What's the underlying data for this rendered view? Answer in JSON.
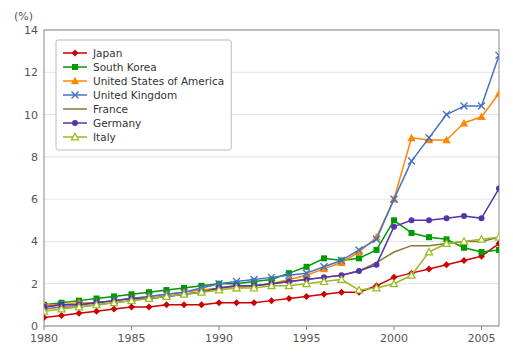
{
  "chart_data": {
    "type": "line",
    "y_label": "(%)",
    "x": [
      1980,
      1981,
      1982,
      1983,
      1984,
      1985,
      1986,
      1987,
      1988,
      1989,
      1990,
      1991,
      1992,
      1993,
      1994,
      1995,
      1996,
      1997,
      1998,
      1999,
      2000,
      2001,
      2002,
      2003,
      2004,
      2005,
      2006
    ],
    "xlim": [
      1980,
      2006
    ],
    "xticks": [
      1980,
      1985,
      1990,
      1995,
      2000,
      2005
    ],
    "ylim": [
      0,
      14
    ],
    "yticks": [
      0,
      2,
      4,
      6,
      8,
      10,
      12,
      14
    ],
    "grid": true,
    "legend": "top-left",
    "series": [
      {
        "name": "Japan",
        "color": "#cc0000",
        "marker": "diamond",
        "values": [
          0.4,
          0.5,
          0.6,
          0.7,
          0.8,
          0.9,
          0.9,
          1.0,
          1.0,
          1.0,
          1.1,
          1.1,
          1.1,
          1.2,
          1.3,
          1.4,
          1.5,
          1.6,
          1.6,
          1.9,
          2.3,
          2.5,
          2.7,
          2.9,
          3.1,
          3.3,
          3.9
        ]
      },
      {
        "name": "South Korea",
        "color": "#009900",
        "marker": "square",
        "values": [
          1.0,
          1.1,
          1.2,
          1.3,
          1.4,
          1.5,
          1.6,
          1.7,
          1.8,
          1.9,
          2.0,
          2.0,
          2.1,
          2.2,
          2.5,
          2.8,
          3.2,
          3.1,
          3.2,
          3.6,
          5.0,
          4.4,
          4.2,
          4.1,
          3.7,
          3.5,
          3.6
        ]
      },
      {
        "name": "United States of America",
        "color": "#ff8800",
        "marker": "triangle",
        "values": [
          1.0,
          1.0,
          1.1,
          1.1,
          1.2,
          1.3,
          1.4,
          1.5,
          1.6,
          1.7,
          1.8,
          1.8,
          1.9,
          2.0,
          2.2,
          2.4,
          2.7,
          3.0,
          3.5,
          4.2,
          6.0,
          8.9,
          8.8,
          8.8,
          9.6,
          9.9,
          11.0
        ]
      },
      {
        "name": "United Kingdom",
        "color": "#4472c4",
        "marker": "x",
        "values": [
          0.9,
          1.0,
          1.0,
          1.1,
          1.2,
          1.3,
          1.4,
          1.5,
          1.6,
          1.8,
          2.0,
          2.1,
          2.2,
          2.3,
          2.4,
          2.5,
          2.8,
          3.1,
          3.6,
          4.1,
          6.0,
          7.8,
          8.9,
          10.0,
          10.4,
          10.4,
          12.8
        ]
      },
      {
        "name": "France",
        "color": "#8b7536",
        "marker": "none",
        "values": [
          0.8,
          0.9,
          0.9,
          1.0,
          1.1,
          1.2,
          1.3,
          1.4,
          1.5,
          1.6,
          1.8,
          1.9,
          1.9,
          2.0,
          2.1,
          2.2,
          2.3,
          2.4,
          2.6,
          3.0,
          3.5,
          3.8,
          3.8,
          3.9,
          4.0,
          4.0,
          4.2
        ]
      },
      {
        "name": "Germany",
        "color": "#5533aa",
        "marker": "circle",
        "values": [
          0.9,
          1.0,
          1.0,
          1.1,
          1.2,
          1.3,
          1.3,
          1.4,
          1.5,
          1.6,
          1.8,
          1.9,
          1.9,
          2.0,
          2.1,
          2.2,
          2.3,
          2.4,
          2.6,
          2.9,
          4.7,
          5.0,
          5.0,
          5.1,
          5.2,
          5.1,
          6.5
        ]
      },
      {
        "name": "Italy",
        "color": "#99bb22",
        "marker": "triangle-open",
        "values": [
          0.7,
          0.8,
          0.9,
          1.0,
          1.1,
          1.2,
          1.3,
          1.4,
          1.5,
          1.6,
          1.7,
          1.8,
          1.8,
          1.9,
          1.9,
          2.0,
          2.1,
          2.2,
          1.7,
          1.8,
          2.0,
          2.4,
          3.5,
          3.9,
          4.0,
          4.1,
          4.2
        ]
      }
    ]
  }
}
